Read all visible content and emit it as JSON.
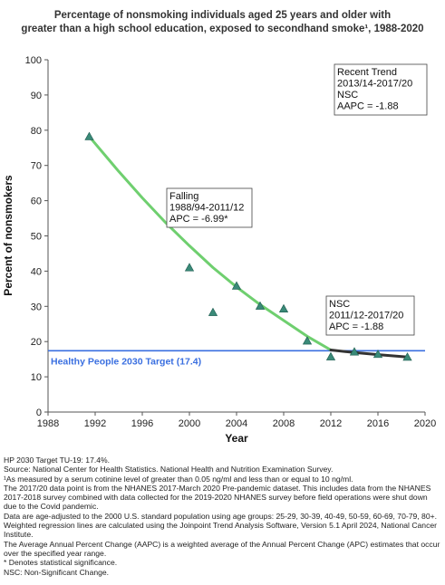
{
  "title": {
    "line1": "Percentage of nonsmoking individuals aged 25 years and older with",
    "line2": "greater than a high school education, exposed to secondhand smoke¹, 1988-2020"
  },
  "chart_data": {
    "type": "scatter",
    "xlabel": "Year",
    "ylabel": "Percent of nonsmokers",
    "xlim": [
      1988,
      2020
    ],
    "ylim": [
      0,
      100
    ],
    "x_ticks": [
      1988,
      1992,
      1996,
      2000,
      2004,
      2008,
      2012,
      2016,
      2020
    ],
    "y_ticks": [
      0,
      10,
      20,
      30,
      40,
      50,
      60,
      70,
      80,
      90,
      100
    ],
    "grid": false,
    "points": [
      {
        "x": 1991.5,
        "y": 78.2
      },
      {
        "x": 2000.0,
        "y": 41.0
      },
      {
        "x": 2002.0,
        "y": 28.3
      },
      {
        "x": 2004.0,
        "y": 35.8
      },
      {
        "x": 2006.0,
        "y": 30.1
      },
      {
        "x": 2008.0,
        "y": 29.3
      },
      {
        "x": 2010.0,
        "y": 20.2
      },
      {
        "x": 2012.0,
        "y": 15.7
      },
      {
        "x": 2014.0,
        "y": 17.1
      },
      {
        "x": 2016.0,
        "y": 16.4
      },
      {
        "x": 2018.5,
        "y": 15.6
      }
    ],
    "trend_falling": {
      "color": "#6fcf6f",
      "x": [
        1991.5,
        1994,
        1996,
        1998,
        2000,
        2002,
        2004,
        2006,
        2008,
        2010,
        2012
      ],
      "y": [
        78.2,
        68.3,
        60.8,
        53.7,
        47.2,
        41.0,
        35.5,
        30.5,
        26.0,
        21.5,
        17.6
      ]
    },
    "trend_nsc": {
      "color": "#333333",
      "x": [
        2012,
        2014,
        2016,
        2018.5
      ],
      "y": [
        17.6,
        16.9,
        16.3,
        15.6
      ]
    },
    "target": {
      "value": 17.4,
      "label": "Healthy People 2030 Target (17.4)",
      "color": "#3a6fe0"
    },
    "marker_color": "#3a8a78",
    "annotations": [
      {
        "id": "recent-trend",
        "lines": [
          "Recent Trend",
          "2013/14-2017/20",
          "NSC",
          "AAPC = -1.88"
        ]
      },
      {
        "id": "falling",
        "lines": [
          "Falling",
          "1988/94-2011/12",
          "APC = -6.99*"
        ]
      },
      {
        "id": "nsc",
        "lines": [
          "NSC",
          "2011/12-2017/20",
          "APC = -1.88"
        ]
      }
    ]
  },
  "notes": [
    "HP 2030 Target TU-19: 17.4%.",
    "Source: National Center for Health Statistics. National Health and Nutrition Examination Survey.",
    "¹As measured by a serum cotinine level of greater than 0.05 ng/ml and less than or equal to 10 ng/ml.",
    "The 2017/20 data point is from the NHANES 2017-March 2020 Pre-pandemic dataset. This includes data from the NHANES 2017-2018 survey combined with data collected for the 2019-2020 NHANES survey before field operations were shut down due to the Covid pandemic.",
    "Data are age-adjusted to the 2000 U.S. standard population using age groups: 25-29, 30-39, 40-49, 50-59, 60-69, 70-79, 80+.",
    "Weighted regression lines are calculated using the Joinpoint Trend Analysis Software, Version 5.1 April 2024, National Cancer Institute.",
    "The Average Annual Percent Change (AAPC) is a weighted average of the Annual Percent Change (APC) estimates that occur over the specified year range.",
    "* Denotes statistical significance.",
    "NSC: Non-Significant Change."
  ]
}
